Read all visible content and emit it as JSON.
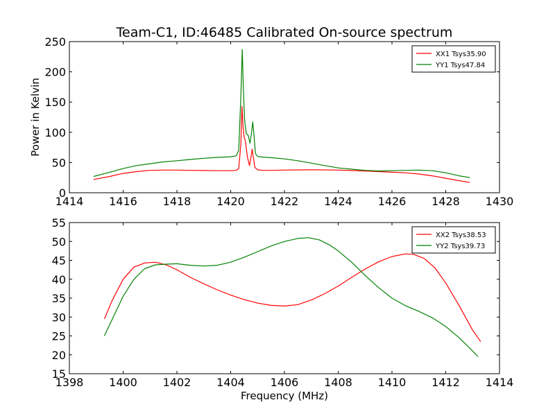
{
  "chart_data": [
    {
      "type": "line",
      "title": "Team-C1, ID:46485 Calibrated On-source spectrum",
      "xlabel": "",
      "ylabel": "Power in Kelvin",
      "xlim": [
        1414,
        1430
      ],
      "ylim": [
        0,
        250
      ],
      "xticks": [
        "1414",
        "1416",
        "1418",
        "1420",
        "1422",
        "1424",
        "1426",
        "1428",
        "1430"
      ],
      "yticks": [
        "0",
        "50",
        "100",
        "150",
        "200",
        "250"
      ],
      "legend_position": "top-right",
      "series": [
        {
          "name": "XX1 Tsys35.90",
          "color": "#ff0000",
          "x": [
            1414.9,
            1415.5,
            1416.0,
            1416.5,
            1417.0,
            1417.5,
            1418.0,
            1418.5,
            1419.0,
            1419.5,
            1420.0,
            1420.2,
            1420.3,
            1420.38,
            1420.42,
            1420.46,
            1420.5,
            1420.55,
            1420.62,
            1420.7,
            1420.76,
            1420.8,
            1420.84,
            1420.9,
            1421.0,
            1421.2,
            1421.5,
            1422.0,
            1423.0,
            1424.0,
            1425.0,
            1425.5,
            1426.0,
            1426.5,
            1427.0,
            1427.5,
            1428.0,
            1428.5,
            1428.9
          ],
          "y": [
            22,
            27,
            32,
            35,
            37,
            37.5,
            37.5,
            37,
            36.8,
            36.5,
            36.5,
            37,
            40,
            80,
            143,
            110,
            92,
            85,
            60,
            45,
            60,
            72,
            60,
            42,
            38,
            37,
            37,
            37.5,
            38,
            37.5,
            36,
            35,
            34,
            33,
            31,
            28,
            24,
            20,
            17
          ]
        },
        {
          "name": "YY1 Tsys47.84",
          "color": "#008000",
          "x": [
            1414.9,
            1415.5,
            1416.0,
            1416.5,
            1417.0,
            1417.5,
            1418.0,
            1418.5,
            1419.0,
            1419.5,
            1420.0,
            1420.2,
            1420.3,
            1420.38,
            1420.43,
            1420.47,
            1420.52,
            1420.58,
            1420.65,
            1420.72,
            1420.78,
            1420.82,
            1420.86,
            1420.92,
            1421.0,
            1421.2,
            1421.5,
            1422.0,
            1422.5,
            1423.0,
            1423.5,
            1424.0,
            1424.5,
            1425.0,
            1425.5,
            1426.0,
            1426.5,
            1427.0,
            1427.5,
            1428.0,
            1428.5,
            1428.9
          ],
          "y": [
            27,
            34,
            40,
            45,
            48,
            51,
            53,
            55,
            57,
            58.5,
            59.5,
            61,
            70,
            160,
            237,
            175,
            120,
            98,
            95,
            82,
            100,
            117,
            100,
            65,
            60,
            59,
            58,
            56,
            53,
            49,
            45,
            41,
            39,
            37,
            36,
            36.5,
            37,
            37.5,
            36.5,
            33,
            28,
            25
          ]
        }
      ]
    },
    {
      "type": "line",
      "title": "",
      "xlabel": "Frequency (MHz)",
      "ylabel": "",
      "xlim": [
        1398,
        1414
      ],
      "ylim": [
        15,
        55
      ],
      "xticks": [
        "1398",
        "1400",
        "1402",
        "1404",
        "1406",
        "1408",
        "1410",
        "1412",
        "1414"
      ],
      "yticks": [
        "15",
        "20",
        "25",
        "30",
        "35",
        "40",
        "45",
        "50",
        "55"
      ],
      "legend_position": "top-right",
      "series": [
        {
          "name": "XX2 Tsys38.53",
          "color": "#ff0000",
          "x": [
            1399.3,
            1399.6,
            1400.0,
            1400.4,
            1400.8,
            1401.2,
            1401.6,
            1402.0,
            1402.5,
            1403.0,
            1403.5,
            1404.0,
            1404.5,
            1405.0,
            1405.5,
            1406.0,
            1406.5,
            1407.0,
            1407.5,
            1408.0,
            1408.5,
            1409.0,
            1409.5,
            1410.0,
            1410.5,
            1410.8,
            1411.2,
            1411.6,
            1412.0,
            1412.5,
            1413.0,
            1413.3
          ],
          "y": [
            29.5,
            34.5,
            40,
            43.2,
            44.3,
            44.5,
            43.8,
            42.5,
            40.5,
            38.8,
            37.2,
            35.8,
            34.6,
            33.7,
            33.1,
            32.9,
            33.3,
            34.5,
            36.2,
            38.2,
            40.5,
            42.7,
            44.6,
            46,
            46.7,
            46.6,
            45.5,
            43,
            39,
            33,
            26.5,
            23.5
          ]
        },
        {
          "name": "YY2 Tsys39.73",
          "color": "#008000",
          "x": [
            1399.3,
            1399.6,
            1400.0,
            1400.4,
            1400.8,
            1401.2,
            1401.6,
            1402.0,
            1402.5,
            1403.0,
            1403.5,
            1404.0,
            1404.5,
            1405.0,
            1405.5,
            1406.0,
            1406.5,
            1406.9,
            1407.3,
            1407.7,
            1408.0,
            1408.5,
            1409.0,
            1409.5,
            1410.0,
            1410.5,
            1411.0,
            1411.5,
            1412.0,
            1412.5,
            1413.0,
            1413.2
          ],
          "y": [
            25,
            29.5,
            35.5,
            40,
            42.8,
            43.8,
            44,
            44.1,
            43.7,
            43.5,
            43.7,
            44.5,
            45.8,
            47.3,
            48.8,
            50,
            50.8,
            51,
            50.4,
            49,
            47.5,
            44.5,
            41,
            37.8,
            35,
            33,
            31.5,
            29.8,
            27.5,
            24.5,
            21,
            19.5
          ]
        }
      ]
    }
  ]
}
